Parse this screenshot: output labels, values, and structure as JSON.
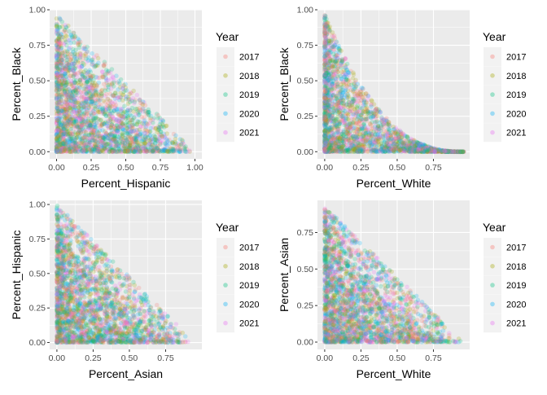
{
  "chart_data": [
    {
      "type": "scatter",
      "xlabel": "Percent_Hispanic",
      "ylabel": "Percent_Black",
      "xlim": [
        -0.05,
        1.05
      ],
      "ylim": [
        -0.05,
        1.0
      ],
      "xticks": [
        0.0,
        0.25,
        0.5,
        0.75,
        1.0
      ],
      "xtick_labels": [
        "0.00",
        "0.25",
        "0.50",
        "0.75",
        "1.00"
      ],
      "yticks": [
        0.0,
        0.25,
        0.5,
        0.75,
        1.0
      ],
      "ytick_labels": [
        "0.00",
        "0.25",
        "0.50",
        "0.75",
        "1.00"
      ],
      "shape": "triangle",
      "x_max": 1.0,
      "y_max": 0.97,
      "legend": {
        "title": "Year",
        "labels": [
          "2017",
          "2018",
          "2019",
          "2020",
          "2021"
        ]
      }
    },
    {
      "type": "scatter",
      "xlabel": "Percent_White",
      "ylabel": "Percent_Black",
      "xlim": [
        -0.05,
        1.0
      ],
      "ylim": [
        -0.05,
        1.0
      ],
      "xticks": [
        0.0,
        0.25,
        0.5,
        0.75
      ],
      "xtick_labels": [
        "0.00",
        "0.25",
        "0.50",
        "0.75"
      ],
      "yticks": [
        0.0,
        0.25,
        0.5,
        0.75,
        1.0
      ],
      "ytick_labels": [
        "0.00",
        "0.25",
        "0.50",
        "0.75",
        "1.00"
      ],
      "shape": "concave",
      "x_max": 0.96,
      "y_max": 0.97,
      "legend": {
        "title": "Year",
        "labels": [
          "2017",
          "2018",
          "2019",
          "2020",
          "2021"
        ]
      }
    },
    {
      "type": "scatter",
      "xlabel": "Percent_Asian",
      "ylabel": "Percent_Hispanic",
      "xlim": [
        -0.05,
        1.0
      ],
      "ylim": [
        -0.05,
        1.03
      ],
      "xticks": [
        0.0,
        0.25,
        0.5,
        0.75
      ],
      "xtick_labels": [
        "0.00",
        "0.25",
        "0.50",
        "0.75"
      ],
      "yticks": [
        0.0,
        0.25,
        0.5,
        0.75,
        1.0
      ],
      "ytick_labels": [
        "0.00",
        "0.25",
        "0.50",
        "0.75",
        "1.00"
      ],
      "shape": "triangle",
      "x_max": 0.95,
      "y_max": 1.0,
      "legend": {
        "title": "Year",
        "labels": [
          "2017",
          "2018",
          "2019",
          "2020",
          "2021"
        ]
      }
    },
    {
      "type": "scatter",
      "xlabel": "Percent_White",
      "ylabel": "Percent_Asian",
      "xlim": [
        -0.05,
        1.0
      ],
      "ylim": [
        -0.05,
        0.97
      ],
      "xticks": [
        0.0,
        0.25,
        0.5,
        0.75
      ],
      "xtick_labels": [
        "0.00",
        "0.25",
        "0.50",
        "0.75"
      ],
      "yticks": [
        0.0,
        0.25,
        0.5,
        0.75
      ],
      "ytick_labels": [
        "0.00",
        "0.25",
        "0.50",
        "0.75"
      ],
      "shape": "triangle",
      "x_max": 0.96,
      "y_max": 0.93,
      "legend": {
        "title": "Year",
        "labels": [
          "2017",
          "2018",
          "2019",
          "2020",
          "2021"
        ]
      }
    }
  ],
  "series_colors": [
    "#F8766D",
    "#A3A500",
    "#00BF7D",
    "#00B0F6",
    "#E76BF3"
  ],
  "colors": {
    "panel_bg": "#EBEBEB",
    "grid": "#FFFFFF",
    "legend_key_bg": "#F2F2F2"
  }
}
